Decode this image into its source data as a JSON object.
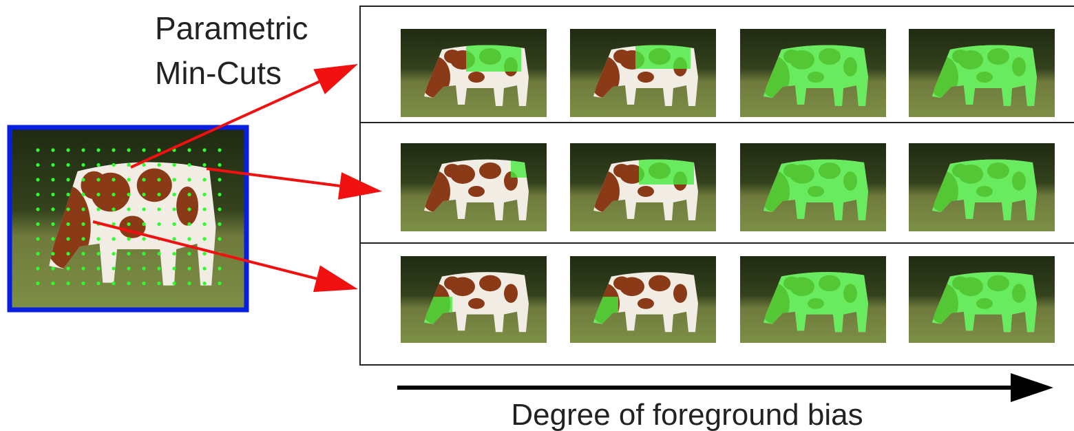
{
  "labels": {
    "method": [
      "Parametric",
      "Min-Cuts"
    ],
    "axis": "Degree of foreground bias"
  }
}
